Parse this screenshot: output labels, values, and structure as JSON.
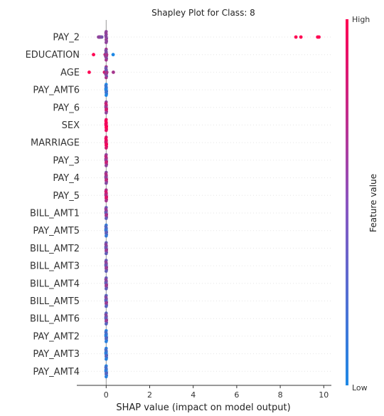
{
  "chart_data": {
    "type": "scatter",
    "title": "Shapley Plot for Class: 8",
    "xlabel": "SHAP value (impact on model output)",
    "xlim": [
      -1.35,
      10.35
    ],
    "xticks": [
      0,
      2,
      4,
      6,
      8,
      10
    ],
    "colorbar": {
      "label": "Feature value",
      "high_label": "High",
      "low_label": "Low",
      "high_color": "#ff0052",
      "low_color": "#1e88e5"
    },
    "features": [
      {
        "name": "PAY_2",
        "points": [
          {
            "x": -0.32,
            "v": 0.5
          },
          {
            "x": -0.3,
            "v": 0.45
          },
          {
            "x": -0.28,
            "v": 0.55
          },
          {
            "x": -0.35,
            "v": 0.5
          },
          {
            "x": -0.25,
            "v": 0.5
          },
          {
            "x": -0.2,
            "v": 0.4
          },
          {
            "x": 8.72,
            "v": 1.0
          },
          {
            "x": 8.95,
            "v": 1.0
          },
          {
            "x": 9.72,
            "v": 1.0
          },
          {
            "x": 9.78,
            "v": 1.0
          }
        ]
      },
      {
        "name": "EDUCATION",
        "points": [
          {
            "x": -0.58,
            "v": 1.0
          },
          {
            "x": -0.05,
            "v": 0.7
          },
          {
            "x": -0.02,
            "v": 0.5
          },
          {
            "x": 0.0,
            "v": 0.4
          },
          {
            "x": 0.02,
            "v": 0.6
          },
          {
            "x": 0.32,
            "v": 0.0
          }
        ]
      },
      {
        "name": "AGE",
        "points": [
          {
            "x": -0.78,
            "v": 1.0
          },
          {
            "x": -0.08,
            "v": 0.8
          },
          {
            "x": -0.02,
            "v": 0.5
          },
          {
            "x": 0.0,
            "v": 0.3
          },
          {
            "x": 0.03,
            "v": 0.6
          },
          {
            "x": 0.33,
            "v": 0.6
          }
        ]
      },
      {
        "name": "PAY_AMT6",
        "points": [
          {
            "x": 0.0,
            "v": 0.1
          },
          {
            "x": -0.01,
            "v": 0.0
          },
          {
            "x": 0.01,
            "v": 0.15
          }
        ]
      },
      {
        "name": "PAY_6",
        "points": [
          {
            "x": 0.0,
            "v": 0.7
          },
          {
            "x": -0.01,
            "v": 0.5
          },
          {
            "x": 0.01,
            "v": 0.8
          }
        ]
      },
      {
        "name": "SEX",
        "points": [
          {
            "x": 0.0,
            "v": 0.95
          },
          {
            "x": -0.01,
            "v": 0.9
          },
          {
            "x": 0.01,
            "v": 1.0
          }
        ]
      },
      {
        "name": "MARRIAGE",
        "points": [
          {
            "x": 0.0,
            "v": 0.9
          },
          {
            "x": -0.01,
            "v": 0.8
          },
          {
            "x": 0.01,
            "v": 0.95
          }
        ]
      },
      {
        "name": "PAY_3",
        "points": [
          {
            "x": 0.0,
            "v": 0.65
          },
          {
            "x": -0.01,
            "v": 0.5
          },
          {
            "x": 0.01,
            "v": 0.75
          }
        ]
      },
      {
        "name": "PAY_4",
        "points": [
          {
            "x": 0.0,
            "v": 0.6
          },
          {
            "x": -0.01,
            "v": 0.45
          },
          {
            "x": 0.01,
            "v": 0.7
          }
        ]
      },
      {
        "name": "PAY_5",
        "points": [
          {
            "x": 0.0,
            "v": 0.75
          },
          {
            "x": -0.01,
            "v": 0.6
          },
          {
            "x": 0.01,
            "v": 0.85
          }
        ]
      },
      {
        "name": "BILL_AMT1",
        "points": [
          {
            "x": 0.0,
            "v": 0.5
          },
          {
            "x": -0.01,
            "v": 0.3
          },
          {
            "x": 0.01,
            "v": 0.6
          }
        ]
      },
      {
        "name": "PAY_AMT5",
        "points": [
          {
            "x": 0.0,
            "v": 0.2
          },
          {
            "x": -0.01,
            "v": 0.1
          },
          {
            "x": 0.01,
            "v": 0.3
          }
        ]
      },
      {
        "name": "BILL_AMT2",
        "points": [
          {
            "x": 0.0,
            "v": 0.45
          },
          {
            "x": -0.01,
            "v": 0.3
          },
          {
            "x": 0.01,
            "v": 0.55
          }
        ]
      },
      {
        "name": "BILL_AMT3",
        "points": [
          {
            "x": 0.0,
            "v": 0.45
          },
          {
            "x": -0.01,
            "v": 0.3
          },
          {
            "x": 0.01,
            "v": 0.55
          }
        ]
      },
      {
        "name": "BILL_AMT4",
        "points": [
          {
            "x": 0.0,
            "v": 0.45
          },
          {
            "x": -0.01,
            "v": 0.3
          },
          {
            "x": 0.01,
            "v": 0.55
          }
        ]
      },
      {
        "name": "BILL_AMT5",
        "points": [
          {
            "x": 0.0,
            "v": 0.4
          },
          {
            "x": -0.01,
            "v": 0.25
          },
          {
            "x": 0.01,
            "v": 0.55
          }
        ]
      },
      {
        "name": "BILL_AMT6",
        "points": [
          {
            "x": 0.0,
            "v": 0.4
          },
          {
            "x": -0.01,
            "v": 0.25
          },
          {
            "x": 0.01,
            "v": 0.55
          }
        ]
      },
      {
        "name": "PAY_AMT2",
        "points": [
          {
            "x": 0.0,
            "v": 0.15
          },
          {
            "x": -0.01,
            "v": 0.05
          },
          {
            "x": 0.01,
            "v": 0.25
          }
        ]
      },
      {
        "name": "PAY_AMT3",
        "points": [
          {
            "x": 0.0,
            "v": 0.15
          },
          {
            "x": -0.01,
            "v": 0.05
          },
          {
            "x": 0.01,
            "v": 0.25
          }
        ]
      },
      {
        "name": "PAY_AMT4",
        "points": [
          {
            "x": 0.0,
            "v": 0.15
          },
          {
            "x": -0.01,
            "v": 0.05
          },
          {
            "x": 0.01,
            "v": 0.25
          }
        ]
      }
    ]
  }
}
